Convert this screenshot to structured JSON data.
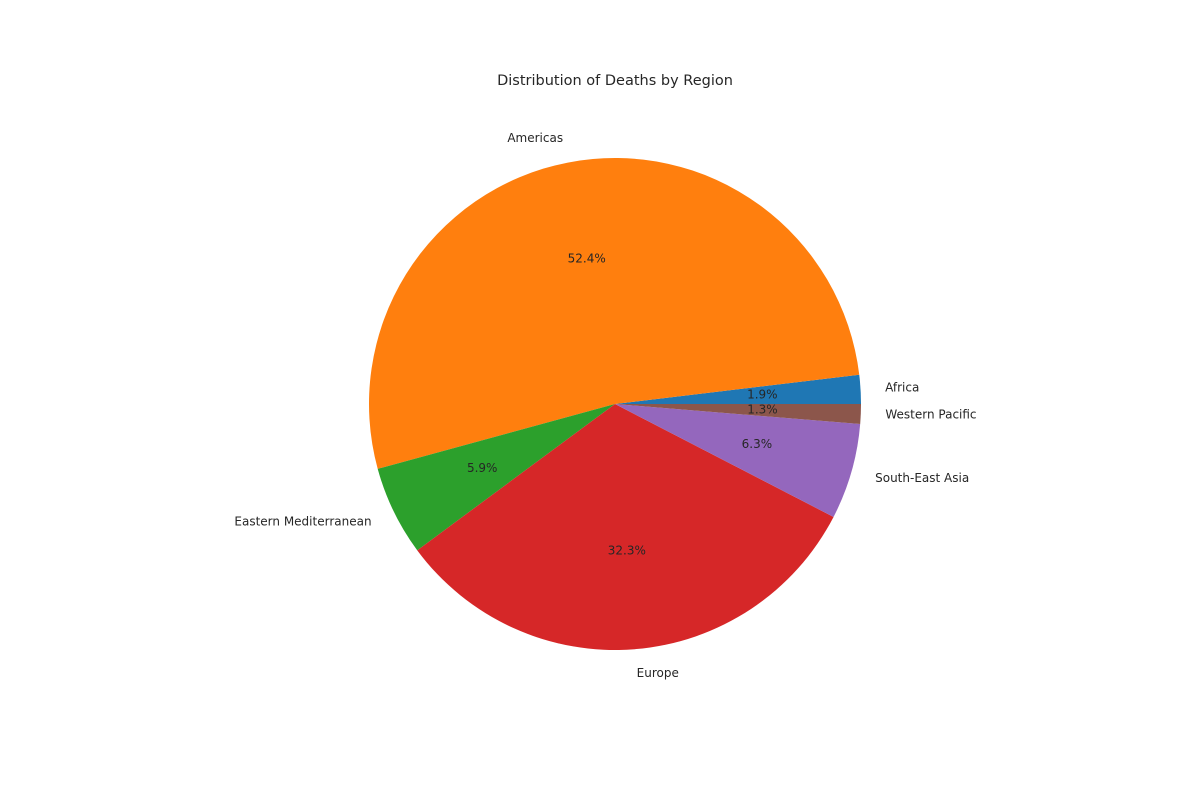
{
  "chart_data": {
    "type": "pie",
    "title": "Distribution of Deaths by Region",
    "categories": [
      "Africa",
      "Americas",
      "Eastern Mediterranean",
      "Europe",
      "South-East Asia",
      "Western Pacific"
    ],
    "values": [
      1.9,
      52.4,
      5.9,
      32.3,
      6.3,
      1.3
    ],
    "percent_labels": [
      "1.9%",
      "52.4%",
      "5.9%",
      "32.3%",
      "6.3%",
      "1.3%"
    ],
    "colors": [
      "#1f77b4",
      "#ff7f0e",
      "#2ca02c",
      "#d62728",
      "#9467bd",
      "#8c564b"
    ],
    "start_angle_deg": 0,
    "direction": "counterclockwise"
  }
}
